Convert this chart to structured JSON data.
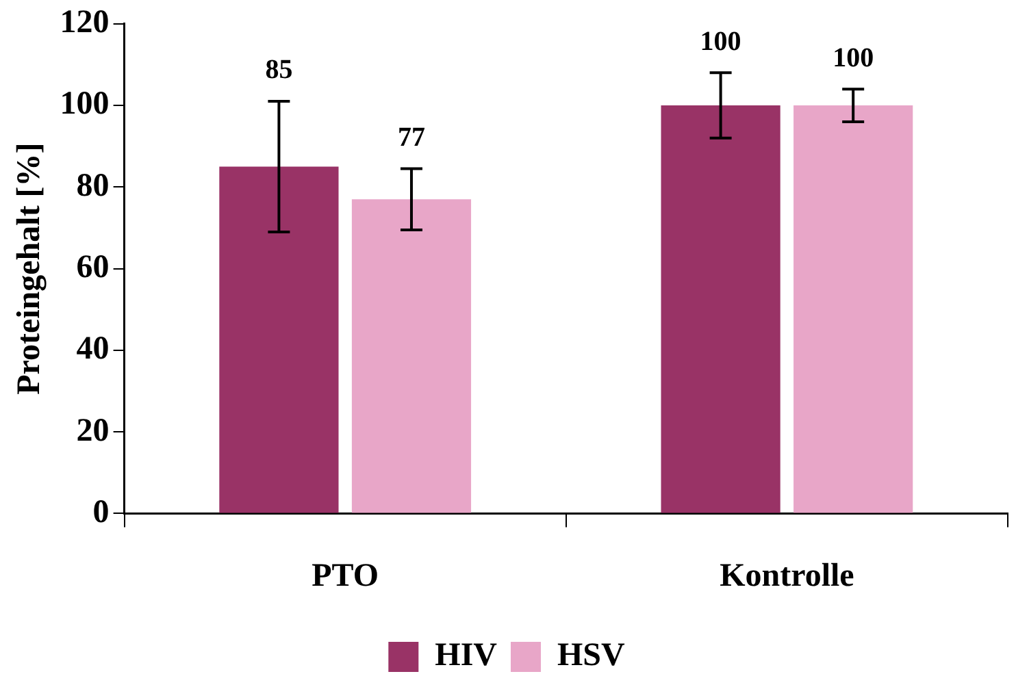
{
  "chart_data": {
    "type": "bar",
    "ylabel": "Proteingehalt [%]",
    "categories": [
      "PTO",
      "Kontrolle"
    ],
    "series": [
      {
        "name": "HIV",
        "color": "#993366",
        "values": [
          85,
          100
        ],
        "errors": [
          16,
          8
        ]
      },
      {
        "name": "HSV",
        "color": "#e8a6c8",
        "values": [
          77,
          100
        ],
        "errors": [
          7.5,
          4
        ]
      }
    ],
    "ylim": [
      0,
      120
    ],
    "yticks": [
      0,
      20,
      40,
      60,
      80,
      100,
      120
    ],
    "grid": false,
    "legend": "bottom",
    "data_labels": true
  }
}
